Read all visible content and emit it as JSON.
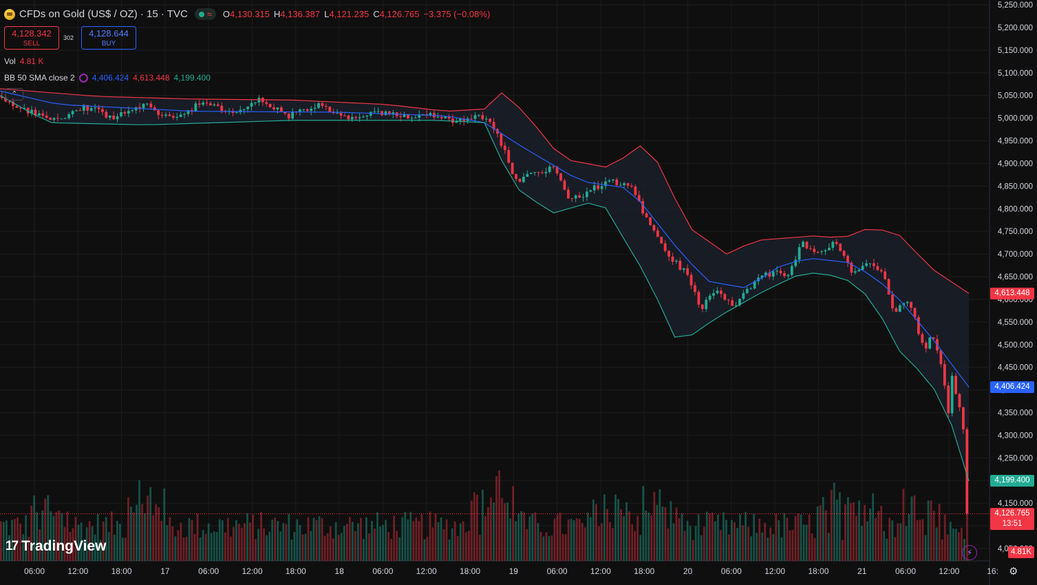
{
  "header": {
    "title": "CFDs on Gold (US$ / OZ) · 15 · TVC",
    "ohlc": [
      {
        "k": "O",
        "v": "4,130.315"
      },
      {
        "k": "H",
        "v": "4,136.387"
      },
      {
        "k": "L",
        "v": "4,121.235"
      },
      {
        "k": "C",
        "v": "4,126.765"
      },
      {
        "k": "",
        "v": "−3.375 (−0.08%)"
      }
    ]
  },
  "trade": {
    "sell_price": "4,128.342",
    "sell_label": "SELL",
    "buy_price": "4,128.644",
    "buy_label": "BUY",
    "spread": "302"
  },
  "volume_legend": {
    "label": "Vol",
    "value": "4.81 K"
  },
  "bb_legend": {
    "label": "BB 50 SMA close 2",
    "basis": "4,406.424",
    "upper": "4,613.448",
    "lower": "4,199.400"
  },
  "price_tags": {
    "upper": "4,613.448",
    "basis": "4,406.424",
    "lower": "4,199.400",
    "last": "4,126.765",
    "countdown": "13:51",
    "volume": "4.81K"
  },
  "branding": {
    "logo_text": "TradingView",
    "logo_mark": "17"
  },
  "colors": {
    "up": "#22ab94",
    "down": "#f23645",
    "basis": "#2962ff",
    "upper_band": "#f23645",
    "lower_band": "#22ab94",
    "background": "#0f0f0f",
    "grid": "#1c1c1c"
  },
  "chart_data": {
    "type": "candlestick",
    "ylim": [
      4050,
      5250
    ],
    "y_ticks": [
      "5,250.000",
      "5,200.000",
      "5,150.000",
      "5,100.000",
      "5,050.000",
      "5,000.000",
      "4,950.000",
      "4,900.000",
      "4,850.000",
      "4,800.000",
      "4,750.000",
      "4,700.000",
      "4,650.000",
      "4,600.000",
      "4,550.000",
      "4,500.000",
      "4,450.000",
      "4,400.000",
      "4,350.000",
      "4,300.000",
      "4,250.000",
      "4,200.000",
      "4,150.000",
      "4,100.000",
      "4,050.000"
    ],
    "y_tick_values": [
      5250,
      5200,
      5150,
      5100,
      5050,
      5000,
      4950,
      4900,
      4850,
      4800,
      4750,
      4700,
      4650,
      4600,
      4550,
      4500,
      4450,
      4400,
      4350,
      4300,
      4250,
      4200,
      4150,
      4100,
      4050
    ],
    "x_ticks": [
      "06:00",
      "12:00",
      "18:00",
      "17",
      "06:00",
      "12:00",
      "18:00",
      "18",
      "06:00",
      "12:00",
      "18:00",
      "19",
      "06:00",
      "12:00",
      "18:00",
      "20",
      "06:00",
      "12:00",
      "18:00",
      "21",
      "06:00",
      "12:00",
      "16:"
    ],
    "price_path": [
      {
        "t": 0,
        "p": 5048
      },
      {
        "t": 0.03,
        "p": 5015
      },
      {
        "t": 0.06,
        "p": 4995
      },
      {
        "t": 0.09,
        "p": 5025
      },
      {
        "t": 0.12,
        "p": 5000
      },
      {
        "t": 0.15,
        "p": 5030
      },
      {
        "t": 0.18,
        "p": 4998
      },
      {
        "t": 0.21,
        "p": 5035
      },
      {
        "t": 0.24,
        "p": 5010
      },
      {
        "t": 0.27,
        "p": 5040
      },
      {
        "t": 0.3,
        "p": 5005
      },
      {
        "t": 0.33,
        "p": 5028
      },
      {
        "t": 0.36,
        "p": 4998
      },
      {
        "t": 0.39,
        "p": 5010
      },
      {
        "t": 0.42,
        "p": 5005
      },
      {
        "t": 0.45,
        "p": 5008
      },
      {
        "t": 0.47,
        "p": 4995
      },
      {
        "t": 0.49,
        "p": 5005
      },
      {
        "t": 0.51,
        "p": 4990
      },
      {
        "t": 0.52,
        "p": 4940
      },
      {
        "t": 0.535,
        "p": 4860
      },
      {
        "t": 0.555,
        "p": 4880
      },
      {
        "t": 0.575,
        "p": 4895
      },
      {
        "t": 0.59,
        "p": 4815
      },
      {
        "t": 0.61,
        "p": 4840
      },
      {
        "t": 0.63,
        "p": 4860
      },
      {
        "t": 0.655,
        "p": 4850
      },
      {
        "t": 0.67,
        "p": 4770
      },
      {
        "t": 0.69,
        "p": 4700
      },
      {
        "t": 0.71,
        "p": 4660
      },
      {
        "t": 0.725,
        "p": 4580
      },
      {
        "t": 0.74,
        "p": 4620
      },
      {
        "t": 0.76,
        "p": 4580
      },
      {
        "t": 0.78,
        "p": 4640
      },
      {
        "t": 0.8,
        "p": 4660
      },
      {
        "t": 0.815,
        "p": 4650
      },
      {
        "t": 0.83,
        "p": 4725
      },
      {
        "t": 0.85,
        "p": 4700
      },
      {
        "t": 0.865,
        "p": 4730
      },
      {
        "t": 0.88,
        "p": 4660
      },
      {
        "t": 0.9,
        "p": 4685
      },
      {
        "t": 0.915,
        "p": 4650
      },
      {
        "t": 0.925,
        "p": 4570
      },
      {
        "t": 0.94,
        "p": 4600
      },
      {
        "t": 0.955,
        "p": 4490
      },
      {
        "t": 0.965,
        "p": 4520
      },
      {
        "t": 0.975,
        "p": 4450
      },
      {
        "t": 0.98,
        "p": 4340
      },
      {
        "t": 0.985,
        "p": 4440
      },
      {
        "t": 0.99,
        "p": 4360
      },
      {
        "t": 0.995,
        "p": 4370
      },
      {
        "t": 1.0,
        "p": 4127
      }
    ],
    "upper_band": [
      {
        "t": 0,
        "p": 5065
      },
      {
        "t": 0.1,
        "p": 5048
      },
      {
        "t": 0.2,
        "p": 5042
      },
      {
        "t": 0.3,
        "p": 5040
      },
      {
        "t": 0.4,
        "p": 5030
      },
      {
        "t": 0.46,
        "p": 5015
      },
      {
        "t": 0.5,
        "p": 5020
      },
      {
        "t": 0.52,
        "p": 5060
      },
      {
        "t": 0.55,
        "p": 4990
      },
      {
        "t": 0.58,
        "p": 4910
      },
      {
        "t": 0.63,
        "p": 4890
      },
      {
        "t": 0.66,
        "p": 4940
      },
      {
        "t": 0.68,
        "p": 4900
      },
      {
        "t": 0.71,
        "p": 4760
      },
      {
        "t": 0.75,
        "p": 4700
      },
      {
        "t": 0.78,
        "p": 4730
      },
      {
        "t": 0.84,
        "p": 4740
      },
      {
        "t": 0.87,
        "p": 4735
      },
      {
        "t": 0.9,
        "p": 4760
      },
      {
        "t": 0.93,
        "p": 4740
      },
      {
        "t": 0.96,
        "p": 4670
      },
      {
        "t": 1.0,
        "p": 4613
      }
    ],
    "basis": [
      {
        "t": 0,
        "p": 5060
      },
      {
        "t": 0.06,
        "p": 5030
      },
      {
        "t": 0.2,
        "p": 5015
      },
      {
        "t": 0.35,
        "p": 5013
      },
      {
        "t": 0.46,
        "p": 5005
      },
      {
        "t": 0.5,
        "p": 4990
      },
      {
        "t": 0.54,
        "p": 4935
      },
      {
        "t": 0.6,
        "p": 4860
      },
      {
        "t": 0.65,
        "p": 4845
      },
      {
        "t": 0.7,
        "p": 4710
      },
      {
        "t": 0.73,
        "p": 4640
      },
      {
        "t": 0.77,
        "p": 4625
      },
      {
        "t": 0.81,
        "p": 4680
      },
      {
        "t": 0.84,
        "p": 4690
      },
      {
        "t": 0.88,
        "p": 4680
      },
      {
        "t": 0.92,
        "p": 4620
      },
      {
        "t": 0.96,
        "p": 4520
      },
      {
        "t": 1.0,
        "p": 4406
      }
    ],
    "lower_band": [
      {
        "t": 0,
        "p": 5050
      },
      {
        "t": 0.05,
        "p": 4990
      },
      {
        "t": 0.15,
        "p": 4985
      },
      {
        "t": 0.3,
        "p": 4995
      },
      {
        "t": 0.45,
        "p": 4995
      },
      {
        "t": 0.5,
        "p": 4990
      },
      {
        "t": 0.53,
        "p": 4850
      },
      {
        "t": 0.57,
        "p": 4790
      },
      {
        "t": 0.62,
        "p": 4820
      },
      {
        "t": 0.67,
        "p": 4640
      },
      {
        "t": 0.7,
        "p": 4500
      },
      {
        "t": 0.74,
        "p": 4560
      },
      {
        "t": 0.79,
        "p": 4620
      },
      {
        "t": 0.83,
        "p": 4660
      },
      {
        "t": 0.87,
        "p": 4650
      },
      {
        "t": 0.9,
        "p": 4600
      },
      {
        "t": 0.93,
        "p": 4480
      },
      {
        "t": 0.96,
        "p": 4420
      },
      {
        "t": 0.985,
        "p": 4310
      },
      {
        "t": 1.0,
        "p": 4199
      }
    ],
    "last_price": 4126.765,
    "upper_value": 4613.448,
    "basis_value": 4406.424,
    "lower_value": 4199.4
  }
}
